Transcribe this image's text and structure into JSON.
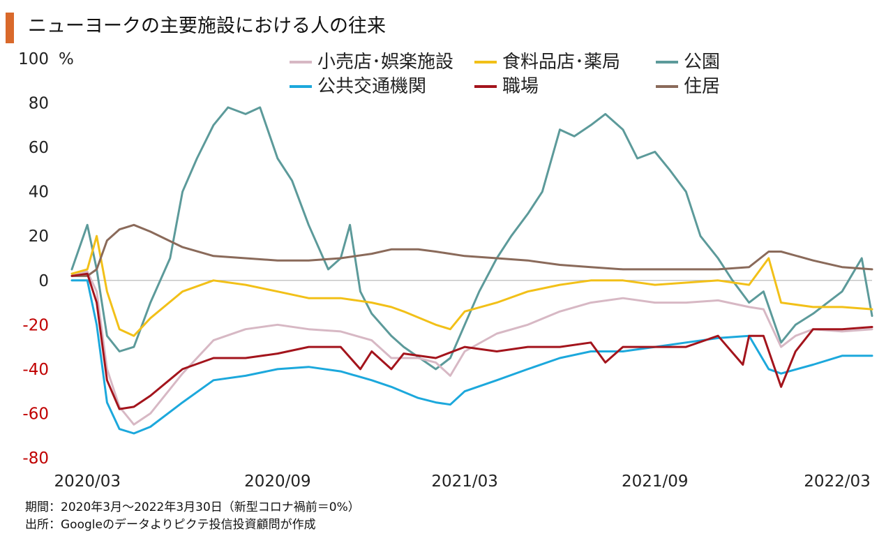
{
  "title": "ニューヨークの主要施設における人の往来",
  "footnotes": [
    "期間：2020年3月～2022年3月30日（新型コロナ禍前＝0%）",
    "出所：Googleのデータよりピクテ投信投資顧問が作成"
  ],
  "colors": {
    "accent": "#d9692b",
    "negative_tick": "#c00000",
    "positive_tick": "#222222",
    "zero_line": "#bbbbbb"
  },
  "chart_data": {
    "type": "line",
    "title": "ニューヨークの主要施設における人の往来",
    "xlabel": "",
    "ylabel": "%",
    "ylim": [
      -80,
      100
    ],
    "yticks": [
      -80,
      -60,
      -40,
      -20,
      0,
      20,
      40,
      60,
      80,
      100
    ],
    "xlim": [
      "2020-02-15",
      "2022-03-30"
    ],
    "xticks": [
      {
        "label": "2020/03",
        "date": "2020-03-01"
      },
      {
        "label": "2020/09",
        "date": "2020-09-01"
      },
      {
        "label": "2021/03",
        "date": "2021-03-01"
      },
      {
        "label": "2021/09",
        "date": "2021-09-01"
      },
      {
        "label": "2022/03",
        "date": "2022-03-01"
      }
    ],
    "grid": false,
    "legend": "top-right",
    "series": [
      {
        "name": "小売店･娯楽施設",
        "color": "#d7b8c4",
        "points": [
          [
            "2020-02-15",
            3
          ],
          [
            "2020-03-01",
            4
          ],
          [
            "2020-03-10",
            -5
          ],
          [
            "2020-03-20",
            -40
          ],
          [
            "2020-04-01",
            -57
          ],
          [
            "2020-04-15",
            -65
          ],
          [
            "2020-05-01",
            -60
          ],
          [
            "2020-06-01",
            -42
          ],
          [
            "2020-07-01",
            -27
          ],
          [
            "2020-08-01",
            -22
          ],
          [
            "2020-09-01",
            -20
          ],
          [
            "2020-10-01",
            -22
          ],
          [
            "2020-11-01",
            -23
          ],
          [
            "2020-12-01",
            -27
          ],
          [
            "2020-12-20",
            -35
          ],
          [
            "2021-01-15",
            -35
          ],
          [
            "2021-02-01",
            -37
          ],
          [
            "2021-02-15",
            -43
          ],
          [
            "2021-03-01",
            -32
          ],
          [
            "2021-04-01",
            -24
          ],
          [
            "2021-05-01",
            -20
          ],
          [
            "2021-06-01",
            -14
          ],
          [
            "2021-07-01",
            -10
          ],
          [
            "2021-08-01",
            -8
          ],
          [
            "2021-09-01",
            -10
          ],
          [
            "2021-10-01",
            -10
          ],
          [
            "2021-11-01",
            -9
          ],
          [
            "2021-12-01",
            -12
          ],
          [
            "2021-12-15",
            -13
          ],
          [
            "2022-01-01",
            -30
          ],
          [
            "2022-01-15",
            -25
          ],
          [
            "2022-02-01",
            -22
          ],
          [
            "2022-03-01",
            -23
          ],
          [
            "2022-03-30",
            -22
          ]
        ]
      },
      {
        "name": "食料品店･薬局",
        "color": "#f2c018",
        "points": [
          [
            "2020-02-15",
            3
          ],
          [
            "2020-03-01",
            5
          ],
          [
            "2020-03-10",
            20
          ],
          [
            "2020-03-20",
            -5
          ],
          [
            "2020-04-01",
            -22
          ],
          [
            "2020-04-15",
            -25
          ],
          [
            "2020-05-01",
            -17
          ],
          [
            "2020-06-01",
            -5
          ],
          [
            "2020-07-01",
            0
          ],
          [
            "2020-08-01",
            -2
          ],
          [
            "2020-09-01",
            -5
          ],
          [
            "2020-10-01",
            -8
          ],
          [
            "2020-11-01",
            -8
          ],
          [
            "2020-12-01",
            -10
          ],
          [
            "2020-12-20",
            -12
          ],
          [
            "2021-01-01",
            -14
          ],
          [
            "2021-02-01",
            -20
          ],
          [
            "2021-02-15",
            -22
          ],
          [
            "2021-03-01",
            -14
          ],
          [
            "2021-04-01",
            -10
          ],
          [
            "2021-05-01",
            -5
          ],
          [
            "2021-06-01",
            -2
          ],
          [
            "2021-07-01",
            0
          ],
          [
            "2021-08-01",
            0
          ],
          [
            "2021-09-01",
            -2
          ],
          [
            "2021-10-01",
            -1
          ],
          [
            "2021-11-01",
            0
          ],
          [
            "2021-12-01",
            -2
          ],
          [
            "2021-12-20",
            10
          ],
          [
            "2022-01-01",
            -10
          ],
          [
            "2022-02-01",
            -12
          ],
          [
            "2022-03-01",
            -12
          ],
          [
            "2022-03-30",
            -13
          ]
        ]
      },
      {
        "name": "公園",
        "color": "#5c9a9a",
        "points": [
          [
            "2020-02-15",
            5
          ],
          [
            "2020-03-01",
            25
          ],
          [
            "2020-03-10",
            5
          ],
          [
            "2020-03-20",
            -25
          ],
          [
            "2020-04-01",
            -32
          ],
          [
            "2020-04-15",
            -30
          ],
          [
            "2020-05-01",
            -10
          ],
          [
            "2020-05-20",
            10
          ],
          [
            "2020-06-01",
            40
          ],
          [
            "2020-06-15",
            55
          ],
          [
            "2020-07-01",
            70
          ],
          [
            "2020-07-15",
            78
          ],
          [
            "2020-08-01",
            75
          ],
          [
            "2020-08-15",
            78
          ],
          [
            "2020-09-01",
            55
          ],
          [
            "2020-09-15",
            45
          ],
          [
            "2020-10-01",
            25
          ],
          [
            "2020-10-20",
            5
          ],
          [
            "2020-11-01",
            10
          ],
          [
            "2020-11-10",
            25
          ],
          [
            "2020-11-20",
            -5
          ],
          [
            "2020-12-01",
            -15
          ],
          [
            "2020-12-20",
            -25
          ],
          [
            "2021-01-01",
            -30
          ],
          [
            "2021-02-01",
            -40
          ],
          [
            "2021-02-15",
            -35
          ],
          [
            "2021-03-01",
            -20
          ],
          [
            "2021-03-15",
            -5
          ],
          [
            "2021-04-01",
            10
          ],
          [
            "2021-04-15",
            20
          ],
          [
            "2021-05-01",
            30
          ],
          [
            "2021-05-15",
            40
          ],
          [
            "2021-06-01",
            68
          ],
          [
            "2021-06-15",
            65
          ],
          [
            "2021-07-01",
            70
          ],
          [
            "2021-07-15",
            75
          ],
          [
            "2021-08-01",
            68
          ],
          [
            "2021-08-15",
            55
          ],
          [
            "2021-09-01",
            58
          ],
          [
            "2021-09-15",
            50
          ],
          [
            "2021-10-01",
            40
          ],
          [
            "2021-10-15",
            20
          ],
          [
            "2021-11-01",
            10
          ],
          [
            "2021-11-15",
            0
          ],
          [
            "2021-12-01",
            -10
          ],
          [
            "2021-12-15",
            -5
          ],
          [
            "2022-01-01",
            -28
          ],
          [
            "2022-01-15",
            -20
          ],
          [
            "2022-02-01",
            -15
          ],
          [
            "2022-03-01",
            -5
          ],
          [
            "2022-03-20",
            10
          ],
          [
            "2022-03-30",
            -16
          ]
        ]
      },
      {
        "name": "公共交通機関",
        "color": "#1ca8dc",
        "points": [
          [
            "2020-02-15",
            0
          ],
          [
            "2020-03-01",
            0
          ],
          [
            "2020-03-10",
            -20
          ],
          [
            "2020-03-20",
            -55
          ],
          [
            "2020-04-01",
            -67
          ],
          [
            "2020-04-15",
            -69
          ],
          [
            "2020-05-01",
            -66
          ],
          [
            "2020-06-01",
            -55
          ],
          [
            "2020-07-01",
            -45
          ],
          [
            "2020-08-01",
            -43
          ],
          [
            "2020-09-01",
            -40
          ],
          [
            "2020-10-01",
            -39
          ],
          [
            "2020-11-01",
            -41
          ],
          [
            "2020-12-01",
            -45
          ],
          [
            "2020-12-20",
            -48
          ],
          [
            "2021-01-15",
            -53
          ],
          [
            "2021-02-01",
            -55
          ],
          [
            "2021-02-15",
            -56
          ],
          [
            "2021-03-01",
            -50
          ],
          [
            "2021-04-01",
            -45
          ],
          [
            "2021-05-01",
            -40
          ],
          [
            "2021-06-01",
            -35
          ],
          [
            "2021-07-01",
            -32
          ],
          [
            "2021-08-01",
            -32
          ],
          [
            "2021-09-01",
            -30
          ],
          [
            "2021-10-01",
            -28
          ],
          [
            "2021-11-01",
            -26
          ],
          [
            "2021-12-01",
            -25
          ],
          [
            "2021-12-20",
            -40
          ],
          [
            "2022-01-01",
            -42
          ],
          [
            "2022-02-01",
            -38
          ],
          [
            "2022-03-01",
            -34
          ],
          [
            "2022-03-30",
            -34
          ]
        ]
      },
      {
        "name": "職場",
        "color": "#a3141c",
        "points": [
          [
            "2020-02-15",
            2
          ],
          [
            "2020-03-01",
            3
          ],
          [
            "2020-03-10",
            -10
          ],
          [
            "2020-03-20",
            -45
          ],
          [
            "2020-04-01",
            -58
          ],
          [
            "2020-04-15",
            -57
          ],
          [
            "2020-05-01",
            -52
          ],
          [
            "2020-06-01",
            -40
          ],
          [
            "2020-07-01",
            -35
          ],
          [
            "2020-08-01",
            -35
          ],
          [
            "2020-09-01",
            -33
          ],
          [
            "2020-10-01",
            -30
          ],
          [
            "2020-11-01",
            -30
          ],
          [
            "2020-11-20",
            -40
          ],
          [
            "2020-12-01",
            -32
          ],
          [
            "2020-12-20",
            -40
          ],
          [
            "2021-01-01",
            -33
          ],
          [
            "2021-02-01",
            -35
          ],
          [
            "2021-03-01",
            -30
          ],
          [
            "2021-04-01",
            -32
          ],
          [
            "2021-05-01",
            -30
          ],
          [
            "2021-06-01",
            -30
          ],
          [
            "2021-07-01",
            -28
          ],
          [
            "2021-07-15",
            -37
          ],
          [
            "2021-08-01",
            -30
          ],
          [
            "2021-09-01",
            -30
          ],
          [
            "2021-10-01",
            -30
          ],
          [
            "2021-11-01",
            -25
          ],
          [
            "2021-11-25",
            -38
          ],
          [
            "2021-12-01",
            -25
          ],
          [
            "2021-12-15",
            -25
          ],
          [
            "2022-01-01",
            -48
          ],
          [
            "2022-01-15",
            -32
          ],
          [
            "2022-02-01",
            -22
          ],
          [
            "2022-03-01",
            -22
          ],
          [
            "2022-03-30",
            -21
          ]
        ]
      },
      {
        "name": "住居",
        "color": "#8a6a5a",
        "points": [
          [
            "2020-02-15",
            2
          ],
          [
            "2020-03-01",
            2
          ],
          [
            "2020-03-10",
            5
          ],
          [
            "2020-03-20",
            18
          ],
          [
            "2020-04-01",
            23
          ],
          [
            "2020-04-15",
            25
          ],
          [
            "2020-05-01",
            22
          ],
          [
            "2020-06-01",
            15
          ],
          [
            "2020-07-01",
            11
          ],
          [
            "2020-08-01",
            10
          ],
          [
            "2020-09-01",
            9
          ],
          [
            "2020-10-01",
            9
          ],
          [
            "2020-11-01",
            10
          ],
          [
            "2020-12-01",
            12
          ],
          [
            "2020-12-20",
            14
          ],
          [
            "2021-01-15",
            14
          ],
          [
            "2021-02-01",
            13
          ],
          [
            "2021-03-01",
            11
          ],
          [
            "2021-04-01",
            10
          ],
          [
            "2021-05-01",
            9
          ],
          [
            "2021-06-01",
            7
          ],
          [
            "2021-07-01",
            6
          ],
          [
            "2021-08-01",
            5
          ],
          [
            "2021-09-01",
            5
          ],
          [
            "2021-10-01",
            5
          ],
          [
            "2021-11-01",
            5
          ],
          [
            "2021-12-01",
            6
          ],
          [
            "2021-12-20",
            13
          ],
          [
            "2022-01-01",
            13
          ],
          [
            "2022-02-01",
            9
          ],
          [
            "2022-03-01",
            6
          ],
          [
            "2022-03-30",
            5
          ]
        ]
      }
    ]
  }
}
